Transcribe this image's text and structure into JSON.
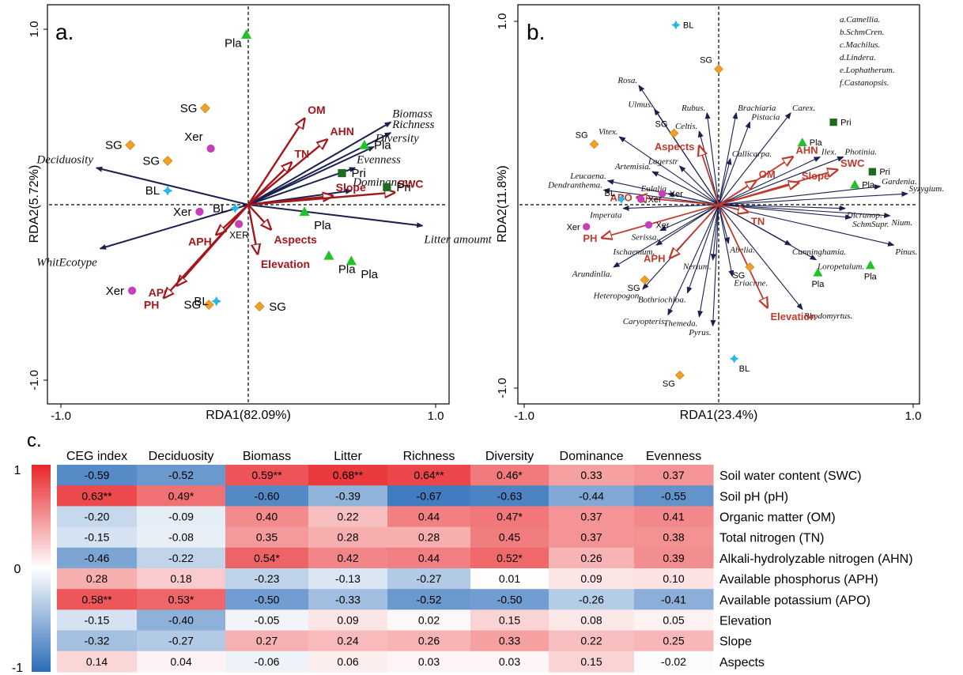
{
  "chart_data": [
    {
      "type": "scatter",
      "panel": "a.",
      "xlabel": "RDA1(82.09%)",
      "ylabel": "RDA2(5.72%)",
      "xlim": [
        -1.05,
        1.05
      ],
      "ylim": [
        -1.05,
        1.05
      ],
      "xticks": [
        {
          "v": -1.0,
          "t": "-1.0"
        },
        {
          "v": 1.0,
          "t": "1.0"
        }
      ],
      "yticks": [
        {
          "v": 1.0,
          "t": "1.0"
        },
        {
          "v": -1.0,
          "t": "-1.0"
        }
      ],
      "sites": [
        {
          "label": "Pla",
          "group": "Pla",
          "x": -0.01,
          "y": 0.97
        },
        {
          "label": "SG",
          "group": "SG",
          "x": -0.23,
          "y": 0.55
        },
        {
          "label": "SG",
          "group": "SG",
          "x": -0.63,
          "y": 0.34
        },
        {
          "label": "SG",
          "group": "SG",
          "x": -0.43,
          "y": 0.25
        },
        {
          "label": "Xer",
          "group": "Xer",
          "x": -0.2,
          "y": 0.32
        },
        {
          "label": "BL",
          "group": "BL",
          "x": -0.43,
          "y": 0.08
        },
        {
          "label": "Xer",
          "group": "Xer",
          "x": -0.26,
          "y": -0.04
        },
        {
          "label": "BL",
          "group": "BL",
          "x": -0.07,
          "y": -0.02
        },
        {
          "label": "XER",
          "group": "Xer",
          "x": -0.05,
          "y": -0.11
        },
        {
          "label": "Pla",
          "group": "Pla",
          "x": 0.3,
          "y": -0.04
        },
        {
          "label": "Pla",
          "group": "Pla",
          "x": 0.43,
          "y": -0.29
        },
        {
          "label": "Pla",
          "group": "Pla",
          "x": 0.55,
          "y": -0.32
        },
        {
          "label": "Xer",
          "group": "Xer",
          "x": -0.62,
          "y": -0.49
        },
        {
          "label": "SG",
          "group": "SG",
          "x": -0.21,
          "y": -0.57
        },
        {
          "label": "BL",
          "group": "BL",
          "x": -0.17,
          "y": -0.55
        },
        {
          "label": "SG",
          "group": "SG",
          "x": 0.06,
          "y": -0.58
        },
        {
          "label": "Pla",
          "group": "Pla",
          "x": 0.62,
          "y": 0.34
        },
        {
          "label": "Pri",
          "group": "Pri",
          "x": 0.5,
          "y": 0.18
        },
        {
          "label": "Pri",
          "group": "Pri",
          "x": 0.74,
          "y": 0.1
        }
      ],
      "species": [
        {
          "label": "Biomass",
          "x": 0.76,
          "y": 0.47
        },
        {
          "label": "Richness",
          "x": 0.76,
          "y": 0.41
        },
        {
          "label": "Diversity",
          "x": 0.67,
          "y": 0.33
        },
        {
          "label": "Evenness",
          "x": 0.57,
          "y": 0.21
        },
        {
          "label": "Dominance",
          "x": 0.55,
          "y": 0.08
        },
        {
          "label": "Litter amoumt",
          "x": 0.93,
          "y": -0.12
        },
        {
          "label": "Deciduosity",
          "x": -0.81,
          "y": 0.21
        },
        {
          "label": "WhitEcotype",
          "x": -0.79,
          "y": -0.25
        }
      ],
      "env": [
        {
          "label": "OM",
          "x": 0.3,
          "y": 0.49
        },
        {
          "label": "AHN",
          "x": 0.42,
          "y": 0.37
        },
        {
          "label": "TN",
          "x": 0.23,
          "y": 0.24
        },
        {
          "label": "Slope",
          "x": 0.45,
          "y": 0.05
        },
        {
          "label": "SWC",
          "x": 0.78,
          "y": 0.07
        },
        {
          "label": "Aspects",
          "x": 0.12,
          "y": -0.14
        },
        {
          "label": "Elevation",
          "x": 0.05,
          "y": -0.28
        },
        {
          "label": "APH",
          "x": -0.17,
          "y": -0.17
        },
        {
          "label": "APO",
          "x": -0.38,
          "y": -0.46
        },
        {
          "label": "PH",
          "x": -0.45,
          "y": -0.53
        }
      ]
    },
    {
      "type": "scatter",
      "panel": "b.",
      "xlabel": "RDA1(23.4%)",
      "ylabel": "RDA2(11.8%)",
      "xlim": [
        -1.05,
        1.05
      ],
      "ylim": [
        -1.05,
        1.05
      ],
      "xticks": [
        {
          "v": -1.0,
          "t": "-1.0"
        },
        {
          "v": 1.0,
          "t": "1.0"
        }
      ],
      "yticks": [
        {
          "v": 1.0,
          "t": "1.0"
        },
        {
          "v": -1.0,
          "t": "-1.0"
        }
      ],
      "legend": [
        "a.Camellia.",
        "b.SchmCren.",
        "c.Machilus.",
        "d.Lindera.",
        "e.Lophatherum.",
        "f.Castanopsis."
      ],
      "sites": [
        {
          "label": "BL",
          "group": "BL",
          "x": -0.22,
          "y": 0.98
        },
        {
          "label": "SG",
          "group": "SG",
          "x": 0.0,
          "y": 0.74
        },
        {
          "label": "SG",
          "group": "SG",
          "x": -0.23,
          "y": 0.39
        },
        {
          "label": "SG",
          "group": "SG",
          "x": -0.64,
          "y": 0.33
        },
        {
          "label": "Pla",
          "group": "Pla",
          "x": 0.43,
          "y": 0.34
        },
        {
          "label": "Pri",
          "group": "Pri",
          "x": 0.59,
          "y": 0.45
        },
        {
          "label": "Pri",
          "group": "Pri",
          "x": 0.79,
          "y": 0.18
        },
        {
          "label": "Pla",
          "group": "Pla",
          "x": 0.7,
          "y": 0.11
        },
        {
          "label": "BL",
          "group": "BL",
          "x": -0.5,
          "y": 0.03
        },
        {
          "label": "Xer",
          "group": "Xer",
          "x": -0.29,
          "y": 0.06
        },
        {
          "label": "Xer",
          "group": "Xer",
          "x": -0.4,
          "y": 0.03
        },
        {
          "label": "Xer",
          "group": "Xer",
          "x": -0.68,
          "y": -0.12
        },
        {
          "label": "Xer",
          "group": "Xer",
          "x": -0.36,
          "y": -0.11
        },
        {
          "label": "SG",
          "group": "SG",
          "x": -0.38,
          "y": -0.41
        },
        {
          "label": "SG",
          "group": "SG",
          "x": 0.16,
          "y": -0.34
        },
        {
          "label": "Pla",
          "group": "Pla",
          "x": 0.51,
          "y": -0.37
        },
        {
          "label": "Pla",
          "group": "Pla",
          "x": 0.78,
          "y": -0.33
        },
        {
          "label": "BL",
          "group": "BL",
          "x": 0.08,
          "y": -0.84
        },
        {
          "label": "SG",
          "group": "SG",
          "x": -0.2,
          "y": -0.93
        }
      ],
      "species": [
        {
          "label": "Rosa.",
          "x": -0.41,
          "y": 0.65
        },
        {
          "label": "Ulmus.",
          "x": -0.33,
          "y": 0.52
        },
        {
          "label": "Vitex.",
          "x": -0.51,
          "y": 0.37
        },
        {
          "label": "Rubus.",
          "x": -0.06,
          "y": 0.5
        },
        {
          "label": "Brachiaria",
          "x": 0.09,
          "y": 0.5
        },
        {
          "label": "Carex.",
          "x": 0.37,
          "y": 0.5
        },
        {
          "label": "Pistacia",
          "x": 0.16,
          "y": 0.45
        },
        {
          "label": "Celtis.",
          "x": -0.1,
          "y": 0.4
        },
        {
          "label": "Lagerstr",
          "x": -0.2,
          "y": 0.21
        },
        {
          "label": "Callicarpa.",
          "x": 0.06,
          "y": 0.25
        },
        {
          "label": "Artemisia.",
          "x": -0.34,
          "y": 0.18
        },
        {
          "label": "Leucaena.",
          "x": -0.57,
          "y": 0.13
        },
        {
          "label": "Dendranthema.",
          "x": -0.59,
          "y": 0.08
        },
        {
          "label": "Eulalia",
          "x": -0.26,
          "y": 0.06
        },
        {
          "label": "Ilex.",
          "x": 0.52,
          "y": 0.26
        },
        {
          "label": "Photinia.",
          "x": 0.64,
          "y": 0.26
        },
        {
          "label": "Gardenia.",
          "x": 0.83,
          "y": 0.1
        },
        {
          "label": "Syzygium.",
          "x": 0.97,
          "y": 0.06
        },
        {
          "label": "Nium.",
          "x": 0.88,
          "y": -0.06
        },
        {
          "label": "Dicranop.",
          "x": 0.65,
          "y": -0.02
        },
        {
          "label": "SchmSupr.",
          "x": 0.68,
          "y": -0.07
        },
        {
          "label": "Imperata",
          "x": -0.49,
          "y": -0.02
        },
        {
          "label": "Serissa.",
          "x": -0.3,
          "y": -0.14
        },
        {
          "label": "Ischaemum.",
          "x": -0.32,
          "y": -0.22
        },
        {
          "label": "Abelia.",
          "x": 0.05,
          "y": -0.21
        },
        {
          "label": "Nerium.",
          "x": -0.03,
          "y": -0.3
        },
        {
          "label": "Eriachne.",
          "x": 0.07,
          "y": -0.39
        },
        {
          "label": "Cunninghamia.",
          "x": 0.37,
          "y": -0.22
        },
        {
          "label": "Loropetalum.",
          "x": 0.5,
          "y": -0.3
        },
        {
          "label": "Pinus.",
          "x": 0.9,
          "y": -0.22
        },
        {
          "label": "Rhodomyrtus.",
          "x": 0.43,
          "y": -0.57
        },
        {
          "label": "Arundinlla.",
          "x": -0.54,
          "y": -0.34
        },
        {
          "label": "Heteropogon.",
          "x": -0.39,
          "y": -0.46
        },
        {
          "label": "Bothriochloa.",
          "x": -0.16,
          "y": -0.48
        },
        {
          "label": "Caryopteris.",
          "x": -0.26,
          "y": -0.6
        },
        {
          "label": "Themeda.",
          "x": -0.1,
          "y": -0.61
        },
        {
          "label": "Pyrus.",
          "x": -0.03,
          "y": -0.66
        }
      ],
      "env": [
        {
          "label": "SWC",
          "x": 0.61,
          "y": 0.19
        },
        {
          "label": "Slope",
          "x": 0.41,
          "y": 0.12
        },
        {
          "label": "AHN",
          "x": 0.38,
          "y": 0.26
        },
        {
          "label": "OM",
          "x": 0.19,
          "y": 0.13
        },
        {
          "label": "TN",
          "x": 0.15,
          "y": -0.04
        },
        {
          "label": "Aspects",
          "x": -0.1,
          "y": 0.32
        },
        {
          "label": "APO",
          "x": -0.42,
          "y": 0.04
        },
        {
          "label": "PH",
          "x": -0.6,
          "y": -0.18
        },
        {
          "label": "APH",
          "x": -0.25,
          "y": -0.29
        },
        {
          "label": "Elevation",
          "x": 0.25,
          "y": -0.56
        }
      ]
    },
    {
      "type": "heatmap",
      "panel": "c.",
      "columns": [
        "CEG index",
        "Deciduosity",
        "Biomass",
        "Litter",
        "Richness",
        "Diversity",
        "Dominance",
        "Evenness"
      ],
      "rows": [
        {
          "label": "Soil water content (SWC)",
          "values": [
            -0.59,
            -0.52,
            0.59,
            0.68,
            0.64,
            0.46,
            0.33,
            0.37
          ],
          "text": [
            "-0.59",
            "-0.52",
            "0.59**",
            "0.68**",
            "0.64**",
            "0.46*",
            "0.33",
            "0.37"
          ]
        },
        {
          "label": "Soil pH (pH)",
          "values": [
            0.63,
            0.49,
            -0.6,
            -0.39,
            -0.67,
            -0.63,
            -0.44,
            -0.55
          ],
          "text": [
            "0.63**",
            "0.49*",
            "-0.60",
            "-0.39",
            "-0.67",
            "-0.63",
            "-0.44",
            "-0.55"
          ]
        },
        {
          "label": "Organic matter (OM)",
          "values": [
            -0.2,
            -0.09,
            0.4,
            0.22,
            0.44,
            0.47,
            0.37,
            0.41
          ],
          "text": [
            "-0.20",
            "-0.09",
            "0.40",
            "0.22",
            "0.44",
            "0.47*",
            "0.37",
            "0.41"
          ]
        },
        {
          "label": "Total nitrogen (TN)",
          "values": [
            -0.15,
            -0.08,
            0.35,
            0.28,
            0.28,
            0.45,
            0.37,
            0.38
          ],
          "text": [
            "-0.15",
            "-0.08",
            "0.35",
            "0.28",
            "0.28",
            "0.45",
            "0.37",
            "0.38"
          ]
        },
        {
          "label": "Alkali-hydrolyzable nitrogen (AHN)",
          "values": [
            -0.46,
            -0.22,
            0.54,
            0.42,
            0.44,
            0.52,
            0.26,
            0.39
          ],
          "text": [
            "-0.46",
            "-0.22",
            "0.54*",
            "0.42",
            "0.44",
            "0.52*",
            "0.26",
            "0.39"
          ]
        },
        {
          "label": "Available phosphorus (APH)",
          "values": [
            0.28,
            0.18,
            -0.23,
            -0.13,
            -0.27,
            0.01,
            0.09,
            0.1
          ],
          "text": [
            "0.28",
            "0.18",
            "-0.23",
            "-0.13",
            "-0.27",
            "0.01",
            "0.09",
            "0.10"
          ]
        },
        {
          "label": "Available potassium (APO)",
          "values": [
            0.58,
            0.53,
            -0.5,
            -0.33,
            -0.52,
            -0.5,
            -0.26,
            -0.41
          ],
          "text": [
            "0.58**",
            "0.53*",
            "-0.50",
            "-0.33",
            "-0.52",
            "-0.50",
            "-0.26",
            "-0.41"
          ]
        },
        {
          "label": "Elevation",
          "values": [
            -0.15,
            -0.4,
            -0.05,
            0.09,
            0.02,
            0.15,
            0.08,
            0.05
          ],
          "text": [
            "-0.15",
            "-0.40",
            "-0.05",
            "0.09",
            "0.02",
            "0.15",
            "0.08",
            "0.05"
          ]
        },
        {
          "label": "Slope",
          "values": [
            -0.32,
            -0.27,
            0.27,
            0.24,
            0.26,
            0.33,
            0.22,
            0.25
          ],
          "text": [
            "-0.32",
            "-0.27",
            "0.27",
            "0.24",
            "0.26",
            "0.33",
            "0.22",
            "0.25"
          ]
        },
        {
          "label": "Aspects",
          "values": [
            0.14,
            0.04,
            -0.06,
            0.06,
            0.03,
            0.03,
            0.15,
            -0.02
          ],
          "text": [
            "0.14",
            "0.04",
            "-0.06",
            "0.06",
            "0.03",
            "0.03",
            "0.15",
            "-0.02"
          ]
        }
      ],
      "colorbar": {
        "ticks": [
          {
            "v": 1,
            "t": "1"
          },
          {
            "v": 0,
            "t": "0"
          },
          {
            "v": -1,
            "t": "-1"
          }
        ],
        "range": [
          -1,
          1
        ]
      }
    }
  ],
  "colors": {
    "SG": "#f0a028",
    "Pla": "#22c02a",
    "Pri": "#1e6b1e",
    "BL": "#29b6e8",
    "Xer": "#c63fb8",
    "species_arrow": "#1a2050",
    "env_arrow_a": "#a3161b",
    "env_arrow_b": "#c0392b",
    "heat_pos": "#e8262a",
    "heat_neg": "#2a6cb8"
  }
}
